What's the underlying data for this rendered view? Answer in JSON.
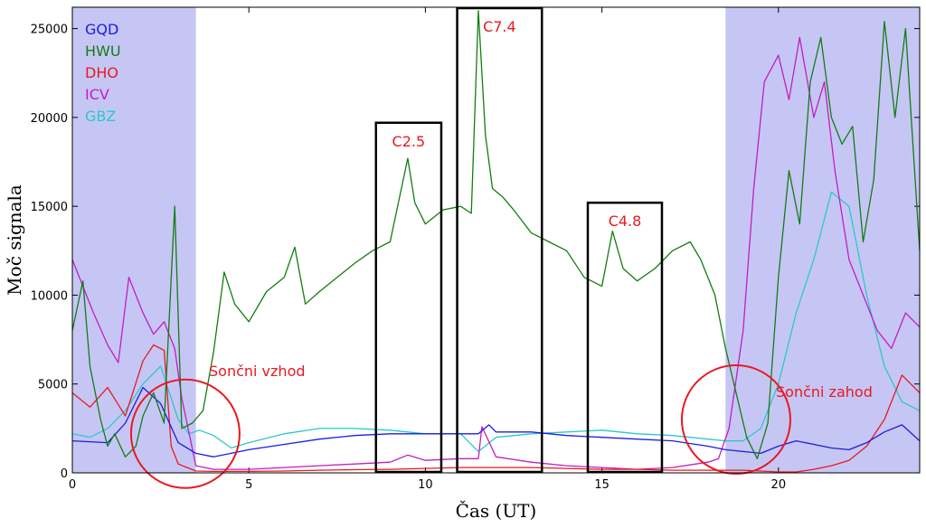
{
  "chart_data": {
    "type": "line",
    "xlabel": "Čas (UT)",
    "ylabel": "Moč signala",
    "xlim": [
      0,
      24
    ],
    "ylim": [
      0,
      26200
    ],
    "xticks": [
      0,
      5,
      10,
      15,
      20
    ],
    "yticks": [
      0,
      5000,
      10000,
      15000,
      20000,
      25000
    ],
    "legend_position": "top-left",
    "night_shading": [
      {
        "from": 0,
        "to": 3.5
      },
      {
        "from": 18.5,
        "to": 24
      }
    ],
    "shade_color": "#c6c6f5",
    "series": [
      {
        "name": "GQD",
        "color": "#1c1ce0",
        "x": [
          0,
          1,
          1.5,
          2,
          2.5,
          3,
          3.5,
          4,
          5,
          6,
          7,
          8,
          9,
          9.5,
          10,
          11,
          11.5,
          11.8,
          12,
          13,
          14,
          15,
          16,
          17,
          18,
          18.5,
          19,
          19.5,
          20,
          20.5,
          21,
          21.5,
          22,
          22.5,
          23,
          23.5,
          24
        ],
        "y": [
          1800,
          1700,
          2800,
          4800,
          3900,
          1700,
          1100,
          900,
          1300,
          1600,
          1900,
          2100,
          2200,
          2200,
          2200,
          2200,
          2200,
          2700,
          2300,
          2300,
          2100,
          2000,
          1900,
          1800,
          1500,
          1300,
          1200,
          1100,
          1500,
          1800,
          1600,
          1400,
          1300,
          1700,
          2300,
          2700,
          1800
        ]
      },
      {
        "name": "HWU",
        "color": "#127d12",
        "x": [
          0,
          0.3,
          0.5,
          0.8,
          1,
          1.2,
          1.5,
          1.8,
          2,
          2.3,
          2.6,
          2.9,
          3.1,
          3.4,
          3.7,
          4,
          4.3,
          4.6,
          5,
          5.5,
          6,
          6.3,
          6.6,
          7,
          7.5,
          8,
          8.5,
          9,
          9.5,
          9.7,
          10,
          10.5,
          11,
          11.3,
          11.5,
          11.7,
          11.9,
          12.2,
          12.5,
          13,
          13.5,
          14,
          14.5,
          15,
          15.3,
          15.6,
          16,
          16.5,
          17,
          17.5,
          17.8,
          18.2,
          18.5,
          18.8,
          19.1,
          19.4,
          19.7,
          20,
          20.3,
          20.6,
          20.9,
          21.2,
          21.5,
          21.8,
          22.1,
          22.4,
          22.7,
          23,
          23.3,
          23.6,
          24
        ],
        "y": [
          8000,
          10800,
          6000,
          3000,
          1500,
          2200,
          900,
          1500,
          3200,
          4500,
          2800,
          15000,
          2500,
          2800,
          3500,
          6800,
          11300,
          9500,
          8500,
          10200,
          11000,
          12700,
          9500,
          10200,
          11000,
          11800,
          12500,
          13000,
          17700,
          15200,
          14000,
          14800,
          15000,
          14600,
          26000,
          19000,
          16000,
          15500,
          14800,
          13500,
          13000,
          12500,
          11000,
          10500,
          13600,
          11500,
          10800,
          11500,
          12500,
          13000,
          12000,
          10000,
          7000,
          4500,
          2000,
          800,
          2800,
          11000,
          17000,
          14000,
          22000,
          24500,
          20000,
          18500,
          19500,
          13000,
          16500,
          25400,
          20000,
          25000,
          12500
        ]
      },
      {
        "name": "DHO",
        "color": "#e8191f",
        "x": [
          0,
          0.5,
          1,
          1.5,
          2,
          2.3,
          2.6,
          2.8,
          3,
          3.5,
          4,
          5,
          6,
          7,
          8,
          9,
          10,
          11,
          12,
          13,
          14,
          15,
          16,
          17,
          18,
          19,
          19.5,
          20,
          20.5,
          21,
          21.5,
          22,
          22.5,
          23,
          23.5,
          24
        ],
        "y": [
          4500,
          3700,
          4800,
          3200,
          6300,
          7200,
          6900,
          1500,
          500,
          100,
          80,
          80,
          100,
          150,
          180,
          200,
          250,
          300,
          300,
          300,
          250,
          200,
          200,
          150,
          150,
          150,
          100,
          50,
          50,
          200,
          400,
          700,
          1500,
          3000,
          5500,
          4500
        ]
      },
      {
        "name": "ICV",
        "color": "#c11ec1",
        "x": [
          0,
          0.3,
          0.6,
          1,
          1.3,
          1.6,
          2,
          2.3,
          2.6,
          2.9,
          3.1,
          3.5,
          4,
          5,
          6,
          7,
          8,
          9,
          9.5,
          10,
          11,
          11.5,
          11.6,
          12,
          13,
          14,
          15,
          16,
          17,
          18,
          18.3,
          18.6,
          19,
          19.3,
          19.6,
          20,
          20.3,
          20.6,
          21,
          21.3,
          21.6,
          22,
          22.4,
          22.8,
          23.2,
          23.6,
          24
        ],
        "y": [
          12000,
          10500,
          9000,
          7200,
          6200,
          11000,
          9000,
          7800,
          8500,
          7000,
          4200,
          400,
          200,
          200,
          300,
          400,
          500,
          600,
          1000,
          700,
          800,
          800,
          2600,
          900,
          600,
          400,
          300,
          200,
          300,
          600,
          800,
          2500,
          8000,
          16000,
          22000,
          23500,
          21000,
          24500,
          20000,
          22000,
          17000,
          12000,
          10000,
          8000,
          7000,
          9000,
          8200
        ]
      },
      {
        "name": "GBZ",
        "color": "#2cc8c8",
        "x": [
          0,
          0.5,
          1,
          1.5,
          2,
          2.5,
          3,
          3.3,
          3.6,
          4,
          4.5,
          5,
          6,
          7,
          8,
          9,
          10,
          11,
          11.5,
          12,
          13,
          14,
          15,
          16,
          17,
          18,
          18.5,
          19,
          19.5,
          20,
          20.5,
          21,
          21.5,
          22,
          22.5,
          23,
          23.5,
          24
        ],
        "y": [
          2200,
          2000,
          2500,
          3500,
          5000,
          6000,
          3000,
          2200,
          2400,
          2100,
          1400,
          1700,
          2200,
          2500,
          2500,
          2400,
          2200,
          2200,
          1200,
          2000,
          2200,
          2300,
          2400,
          2200,
          2100,
          1900,
          1800,
          1800,
          2500,
          5000,
          9000,
          12000,
          15800,
          15000,
          10000,
          6000,
          4000,
          3500
        ]
      }
    ],
    "annotations": {
      "flare_boxes": [
        {
          "label": "C2.5",
          "x_from": 8.6,
          "x_to": 10.45,
          "y_top": 19700
        },
        {
          "label": "C7.4",
          "x_from": 10.9,
          "x_to": 13.3,
          "y_top": 26200
        },
        {
          "label": "C4.8",
          "x_from": 14.6,
          "x_to": 16.7,
          "y_top": 15200
        }
      ],
      "sunrise_label": "Sončni vzhod",
      "sunset_label": "Sončni zahod",
      "circles": [
        {
          "cx": 3.2,
          "cy": 2200
        },
        {
          "cx": 18.8,
          "cy": 3000
        }
      ]
    }
  }
}
